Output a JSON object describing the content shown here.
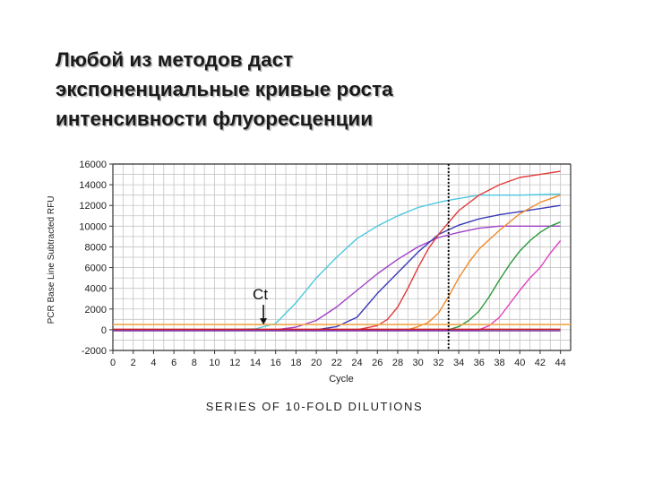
{
  "slide": {
    "title_lines": [
      "Любой из методов даст",
      "экспоненциальные кривые роста",
      "интенсивности флуоресценции"
    ]
  },
  "chart_data": {
    "type": "line",
    "ylabel": "PCR Base Line Subtracted RFU",
    "xlabel": "Cycle",
    "caption": "SERIES OF 10-FOLD DILUTIONS",
    "x_ticks": [
      0,
      2,
      4,
      6,
      8,
      10,
      12,
      14,
      16,
      18,
      20,
      22,
      24,
      26,
      28,
      30,
      32,
      34,
      36,
      38,
      40,
      42,
      44
    ],
    "y_ticks": [
      -2000,
      0,
      2000,
      4000,
      6000,
      8000,
      10000,
      12000,
      14000,
      16000
    ],
    "y_tick_labels": [
      "-2000",
      "0",
      "2000",
      "4000",
      "6000",
      "8000",
      "10000",
      "12000",
      "14000",
      "16000"
    ],
    "xlim": [
      0,
      45
    ],
    "ylim": [
      -2000,
      16000
    ],
    "grid": true,
    "threshold": 500,
    "threshold_color": "#f2a64a",
    "marker_cycle": 33,
    "annotation": {
      "text": "Ct",
      "x": 14.8,
      "y": 500
    },
    "series": [
      {
        "color": "#4cc8e0",
        "x": [
          0,
          10,
          14,
          16,
          18,
          20,
          22,
          24,
          26,
          28,
          30,
          32,
          33,
          36,
          40,
          44
        ],
        "y": [
          0,
          0,
          80,
          600,
          2600,
          5000,
          7000,
          8800,
          10000,
          11000,
          11800,
          12300,
          12500,
          13000,
          13000,
          13100
        ]
      },
      {
        "color": "#a040c8",
        "x": [
          0,
          16,
          18,
          20,
          22,
          24,
          26,
          28,
          30,
          32,
          34,
          36,
          38,
          40,
          42,
          44
        ],
        "y": [
          0,
          0,
          250,
          900,
          2200,
          3800,
          5400,
          6800,
          8000,
          8900,
          9400,
          9800,
          10000,
          10000,
          10000,
          10000
        ]
      },
      {
        "color": "#3a3ab8",
        "x": [
          0,
          20,
          22,
          24,
          26,
          28,
          30,
          32,
          34,
          36,
          38,
          40,
          42,
          44
        ],
        "y": [
          0,
          0,
          300,
          1200,
          3500,
          5500,
          7500,
          9200,
          10100,
          10700,
          11100,
          11400,
          11700,
          12000
        ]
      },
      {
        "color": "#e23a3a",
        "x": [
          0,
          24,
          26,
          27,
          28,
          29,
          30,
          31,
          32,
          34,
          36,
          38,
          40,
          42,
          44
        ],
        "y": [
          0,
          0,
          400,
          1000,
          2200,
          4000,
          6000,
          7800,
          9200,
          11500,
          13000,
          14000,
          14700,
          15000,
          15300
        ]
      },
      {
        "color": "#f08a2a",
        "x": [
          0,
          29,
          30,
          31,
          32,
          33,
          34,
          35,
          36,
          38,
          40,
          42,
          44
        ],
        "y": [
          0,
          0,
          300,
          700,
          1600,
          3200,
          5000,
          6500,
          7800,
          9600,
          11200,
          12300,
          13000
        ]
      },
      {
        "color": "#2a9a3a",
        "x": [
          0,
          33,
          34,
          35,
          36,
          37,
          38,
          39,
          40,
          41,
          42,
          43,
          44
        ],
        "y": [
          0,
          0,
          300,
          900,
          1800,
          3200,
          4800,
          6300,
          7600,
          8600,
          9400,
          10000,
          10400
        ]
      },
      {
        "color": "#e040c0",
        "x": [
          0,
          36,
          37,
          38,
          39,
          40,
          41,
          42,
          43,
          44
        ],
        "y": [
          0,
          0,
          400,
          1200,
          2500,
          3800,
          5000,
          6000,
          7400,
          8600
        ]
      },
      {
        "color": "#cc2222",
        "x": [
          0,
          44
        ],
        "y": [
          50,
          50
        ]
      },
      {
        "color": "#7030a0",
        "x": [
          0,
          44
        ],
        "y": [
          -100,
          -100
        ]
      }
    ]
  }
}
